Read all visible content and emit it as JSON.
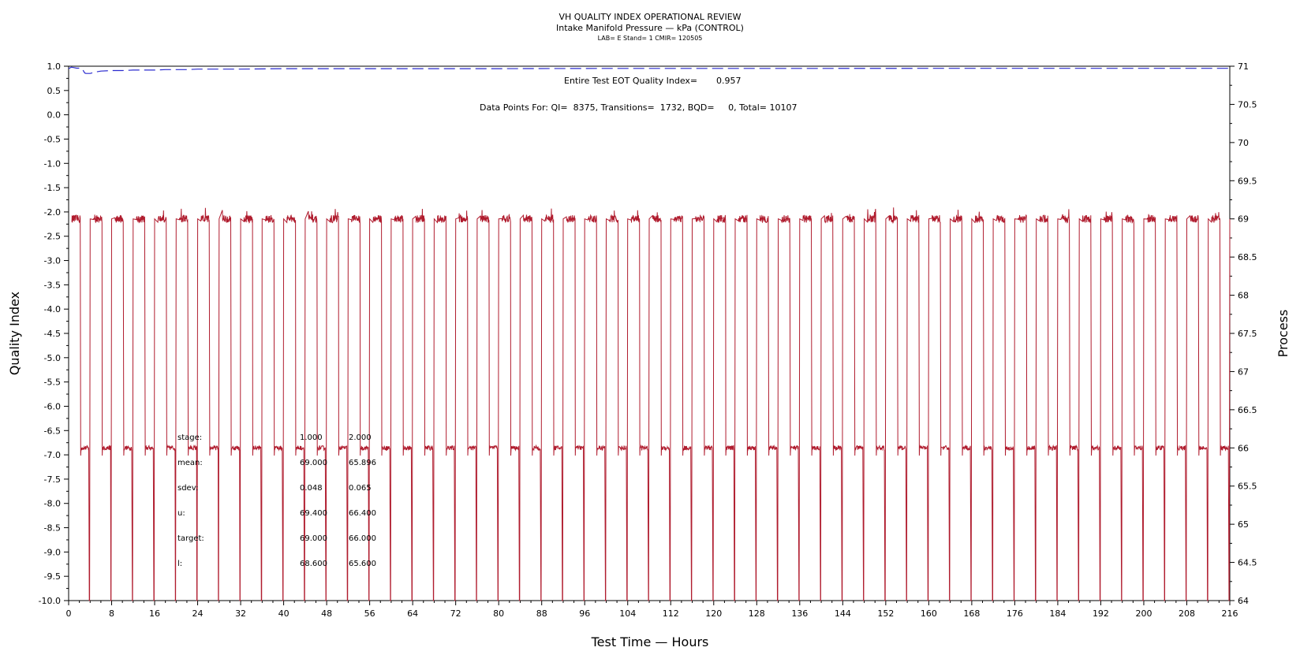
{
  "chart_data": {
    "type": "line",
    "title": "VH QUALITY INDEX OPERATIONAL REVIEW",
    "subtitle": "Intake Manifold Pressure — kPa (CONTROL)",
    "subsubtitle": "LAB= E Stand= 1 CMIR= 120505",
    "xlabel": "Test Time — Hours",
    "ylabel_left": "Quality Index",
    "ylabel_right": "Process",
    "xlim": [
      0,
      216
    ],
    "ylim_left": [
      -10.0,
      1.0
    ],
    "ylim_right": [
      64,
      71
    ],
    "x_ticks": [
      0,
      8,
      16,
      24,
      32,
      40,
      48,
      56,
      64,
      72,
      80,
      88,
      96,
      104,
      112,
      120,
      128,
      136,
      144,
      152,
      160,
      168,
      176,
      184,
      192,
      200,
      208,
      216
    ],
    "y_left_ticks": [
      "1.0",
      "0.5",
      "0.0",
      "-0.5",
      "-1.0",
      "-1.5",
      "-2.0",
      "-2.5",
      "-3.0",
      "-3.5",
      "-4.0",
      "-4.5",
      "-5.0",
      "-5.5",
      "-6.0",
      "-6.5",
      "-7.0",
      "-7.5",
      "-8.0",
      "-8.5",
      "-9.0",
      "-9.5",
      "-10.0"
    ],
    "y_right_ticks": [
      "71",
      "70.5",
      "70",
      "69.5",
      "69",
      "68.5",
      "68",
      "67.5",
      "67",
      "66.5",
      "66",
      "65.5",
      "65",
      "64.5",
      "64"
    ],
    "annotations": {
      "eot_label": "Entire Test EOT Quality Index=",
      "eot_value": "0.957",
      "points_text": "Data Points For: QI=  8375, Transitions=  1732, BQD=     0, Total= 10107"
    },
    "stats_table": {
      "rows": [
        {
          "label": "stage:",
          "v1": "1.000",
          "v2": "2.000"
        },
        {
          "label": "mean:",
          "v1": "69.000",
          "v2": "65.896"
        },
        {
          "label": "sdev:",
          "v1": "0.048",
          "v2": "0.065"
        },
        {
          "label": "u:",
          "v1": "69.400",
          "v2": "66.400"
        },
        {
          "label": "target:",
          "v1": "69.000",
          "v2": "66.000"
        },
        {
          "label": "l:",
          "v1": "68.600",
          "v2": "65.600"
        }
      ]
    },
    "series": [
      {
        "name": "Quality Index",
        "axis": "left",
        "color": "#2b2bcf",
        "style": "dashed",
        "x": [
          0,
          0.5,
          1,
          1.5,
          2,
          2.5,
          3,
          3.2,
          4,
          5,
          6,
          8,
          10,
          12,
          14,
          16,
          18,
          20,
          22,
          24,
          28,
          32,
          40,
          48,
          60,
          80,
          100,
          120,
          140,
          160,
          180,
          200,
          216
        ],
        "y": [
          0.95,
          0.98,
          0.97,
          0.96,
          0.96,
          0.95,
          0.86,
          0.85,
          0.85,
          0.88,
          0.9,
          0.91,
          0.91,
          0.92,
          0.92,
          0.92,
          0.93,
          0.93,
          0.93,
          0.94,
          0.94,
          0.94,
          0.95,
          0.95,
          0.95,
          0.95,
          0.955,
          0.955,
          0.955,
          0.957,
          0.957,
          0.957,
          0.957
        ]
      },
      {
        "name": "Process",
        "axis": "right",
        "color": "#b01c2e",
        "style": "solid",
        "cycle_hours": 4,
        "high_level": 69.0,
        "high_noise": 0.05,
        "low_level": 65.9,
        "low_noise": 0.03,
        "dip_level": 64.0,
        "count_cycles": 54
      }
    ]
  }
}
